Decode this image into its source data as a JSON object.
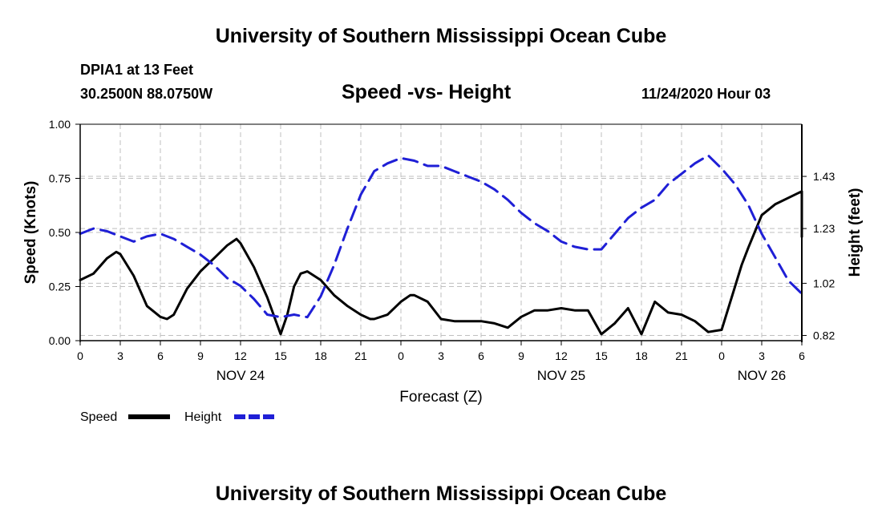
{
  "header": {
    "top_title": "University of Southern Mississippi Ocean Cube",
    "station": "DPIA1 at 13 Feet",
    "coords": "30.2500N 88.0750W",
    "chart_title": "Speed -vs- Height",
    "timestamp": "11/24/2020 Hour 03",
    "bottom_title": "University of Southern Mississippi Ocean Cube"
  },
  "legend": {
    "speed_label": "Speed",
    "height_label": "Height"
  },
  "colors": {
    "speed": "#000000",
    "height": "#1f1fd6",
    "grid": "#bfbfbf"
  },
  "chart_data": {
    "type": "line",
    "title": "Speed -vs- Height",
    "xlabel": "Forecast (Z)",
    "ylabel": "Speed (Knots)",
    "y2label": "Height (feet)",
    "xlim": [
      0,
      54
    ],
    "ylim": [
      0,
      1
    ],
    "y2lim": [
      0.8,
      1.63
    ],
    "x_ticks": [
      0,
      3,
      6,
      9,
      12,
      15,
      18,
      21,
      24,
      27,
      30,
      33,
      36,
      39,
      42,
      45,
      48,
      51,
      54
    ],
    "x_tick_labels": [
      "0",
      "3",
      "6",
      "9",
      "12",
      "15",
      "18",
      "21",
      "0",
      "3",
      "6",
      "9",
      "12",
      "15",
      "18",
      "21",
      "0",
      "3",
      "6"
    ],
    "day_labels": [
      {
        "x": 12,
        "label": "NOV 24"
      },
      {
        "x": 36,
        "label": "NOV 25"
      },
      {
        "x": 51,
        "label": "NOV 26"
      }
    ],
    "y_ticks": [
      0,
      0.25,
      0.5,
      0.75,
      1.0
    ],
    "y_tick_labels": [
      "0.00",
      "0.25",
      "0.50",
      "0.75",
      "1.00"
    ],
    "y2_ticks": [
      0.82,
      1.02,
      1.23,
      1.43
    ],
    "y2_tick_labels": [
      "0.82",
      "1.02",
      "1.23",
      "1.43"
    ],
    "series": [
      {
        "name": "Speed",
        "axis": "left",
        "style": "solid",
        "x": [
          0,
          1,
          2,
          2.7,
          3,
          4,
          5,
          6,
          6.5,
          7,
          8,
          9,
          10,
          11,
          11.7,
          12,
          13,
          14,
          15,
          15.5,
          16,
          16.5,
          17,
          18,
          19,
          20,
          21,
          21.7,
          22,
          23,
          24,
          24.7,
          25,
          26,
          27,
          28,
          29,
          30,
          31,
          32,
          33,
          34,
          35,
          36,
          37,
          38,
          39,
          40,
          41,
          42,
          43,
          44,
          45,
          46,
          47,
          48,
          49,
          49.5,
          50,
          51,
          52,
          53,
          54
        ],
        "values": [
          0.28,
          0.31,
          0.38,
          0.41,
          0.4,
          0.3,
          0.16,
          0.11,
          0.1,
          0.12,
          0.24,
          0.32,
          0.38,
          0.44,
          0.47,
          0.45,
          0.34,
          0.2,
          0.03,
          0.12,
          0.25,
          0.31,
          0.32,
          0.28,
          0.21,
          0.16,
          0.12,
          0.1,
          0.1,
          0.12,
          0.18,
          0.21,
          0.21,
          0.18,
          0.1,
          0.09,
          0.09,
          0.09,
          0.08,
          0.06,
          0.11,
          0.14,
          0.14,
          0.15,
          0.14,
          0.14,
          0.03,
          0.08,
          0.15,
          0.03,
          0.18,
          0.13,
          0.12,
          0.09,
          0.04,
          0.05,
          0.25,
          0.35,
          0.43,
          0.58,
          0.63,
          0.66,
          0.69
        ],
        "extra": {
          "x": [
            54.6
          ],
          "values": [
            0.48
          ]
        }
      },
      {
        "name": "Height",
        "axis": "right",
        "style": "dashed",
        "x": [
          0,
          1,
          2,
          3,
          4,
          5,
          6,
          7,
          8,
          9,
          10,
          11,
          12,
          13,
          14,
          15,
          16,
          17,
          18,
          19,
          20,
          21,
          22,
          23,
          24,
          25,
          26,
          27,
          28,
          29,
          30,
          31,
          32,
          33,
          34,
          35,
          36,
          37,
          38,
          39,
          40,
          41,
          42,
          43,
          44,
          45,
          46,
          47,
          48,
          49,
          50,
          51,
          52,
          53,
          54
        ],
        "values": [
          1.21,
          1.23,
          1.22,
          1.2,
          1.18,
          1.2,
          1.21,
          1.19,
          1.16,
          1.13,
          1.09,
          1.04,
          1.01,
          0.96,
          0.9,
          0.89,
          0.9,
          0.89,
          0.97,
          1.09,
          1.23,
          1.36,
          1.45,
          1.48,
          1.5,
          1.49,
          1.47,
          1.47,
          1.45,
          1.43,
          1.41,
          1.38,
          1.34,
          1.29,
          1.25,
          1.22,
          1.18,
          1.16,
          1.15,
          1.15,
          1.21,
          1.27,
          1.31,
          1.34,
          1.4,
          1.44,
          1.48,
          1.51,
          1.46,
          1.4,
          1.32,
          1.21,
          1.12,
          1.03,
          0.98
        ]
      }
    ]
  }
}
